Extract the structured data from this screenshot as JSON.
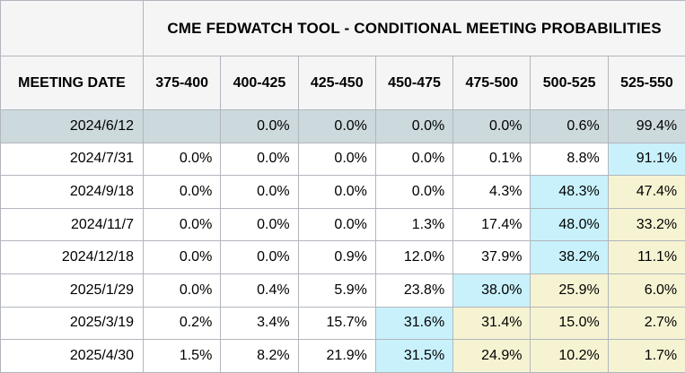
{
  "table": {
    "title": "CME FEDWATCH TOOL - CONDITIONAL MEETING PROBABILITIES",
    "date_header": "MEETING DATE",
    "range_headers": [
      "375-400",
      "400-425",
      "425-450",
      "450-475",
      "475-500",
      "500-525",
      "525-550"
    ],
    "rows": [
      {
        "date": "2024/6/12",
        "selected": true,
        "values": [
          "",
          "0.0%",
          "0.0%",
          "0.0%",
          "0.0%",
          "0.6%",
          "99.4%"
        ],
        "highlights": [
          "",
          "",
          "",
          "",
          "",
          "",
          ""
        ]
      },
      {
        "date": "2024/7/31",
        "selected": false,
        "values": [
          "0.0%",
          "0.0%",
          "0.0%",
          "0.0%",
          "0.1%",
          "8.8%",
          "91.1%"
        ],
        "highlights": [
          "",
          "",
          "",
          "",
          "",
          "",
          "cyan"
        ]
      },
      {
        "date": "2024/9/18",
        "selected": false,
        "values": [
          "0.0%",
          "0.0%",
          "0.0%",
          "0.0%",
          "4.3%",
          "48.3%",
          "47.4%"
        ],
        "highlights": [
          "",
          "",
          "",
          "",
          "",
          "cyan",
          "yellow"
        ]
      },
      {
        "date": "2024/11/7",
        "selected": false,
        "values": [
          "0.0%",
          "0.0%",
          "0.0%",
          "1.3%",
          "17.4%",
          "48.0%",
          "33.2%"
        ],
        "highlights": [
          "",
          "",
          "",
          "",
          "",
          "cyan",
          "yellow"
        ]
      },
      {
        "date": "2024/12/18",
        "selected": false,
        "values": [
          "0.0%",
          "0.0%",
          "0.9%",
          "12.0%",
          "37.9%",
          "38.2%",
          "11.1%"
        ],
        "highlights": [
          "",
          "",
          "",
          "",
          "",
          "cyan",
          "yellow"
        ]
      },
      {
        "date": "2025/1/29",
        "selected": false,
        "values": [
          "0.0%",
          "0.4%",
          "5.9%",
          "23.8%",
          "38.0%",
          "25.9%",
          "6.0%"
        ],
        "highlights": [
          "",
          "",
          "",
          "",
          "cyan",
          "yellow",
          "yellow"
        ]
      },
      {
        "date": "2025/3/19",
        "selected": false,
        "values": [
          "0.2%",
          "3.4%",
          "15.7%",
          "31.6%",
          "31.4%",
          "15.0%",
          "2.7%"
        ],
        "highlights": [
          "",
          "",
          "",
          "cyan",
          "yellow",
          "yellow",
          "yellow"
        ]
      },
      {
        "date": "2025/4/30",
        "selected": false,
        "values": [
          "1.5%",
          "8.2%",
          "21.9%",
          "31.5%",
          "24.9%",
          "10.2%",
          "1.7%"
        ],
        "highlights": [
          "",
          "",
          "",
          "cyan",
          "yellow",
          "yellow",
          "yellow"
        ]
      }
    ]
  },
  "colors": {
    "header_bg": "#f5f5f5",
    "border": "#b2b6bd",
    "selected_row_bg": "#ccd9dd",
    "cyan_cell_bg": "#c8f1fb",
    "yellow_cell_bg": "#f6f3d2"
  },
  "chart_data": {
    "type": "table",
    "title": "CME FEDWATCH TOOL - CONDITIONAL MEETING PROBABILITIES",
    "columns": [
      "MEETING DATE",
      "375-400",
      "400-425",
      "425-450",
      "450-475",
      "475-500",
      "500-525",
      "525-550"
    ],
    "rows": [
      [
        "2024/6/12",
        null,
        0.0,
        0.0,
        0.0,
        0.0,
        0.6,
        99.4
      ],
      [
        "2024/7/31",
        0.0,
        0.0,
        0.0,
        0.0,
        0.1,
        8.8,
        91.1
      ],
      [
        "2024/9/18",
        0.0,
        0.0,
        0.0,
        0.0,
        4.3,
        48.3,
        47.4
      ],
      [
        "2024/11/7",
        0.0,
        0.0,
        0.0,
        1.3,
        17.4,
        48.0,
        33.2
      ],
      [
        "2024/12/18",
        0.0,
        0.0,
        0.9,
        12.0,
        37.9,
        38.2,
        11.1
      ],
      [
        "2025/1/29",
        0.0,
        0.4,
        5.9,
        23.8,
        38.0,
        25.9,
        6.0
      ],
      [
        "2025/3/19",
        0.2,
        3.4,
        15.7,
        31.6,
        31.4,
        15.0,
        2.7
      ],
      [
        "2025/4/30",
        1.5,
        8.2,
        21.9,
        31.5,
        24.9,
        10.2,
        1.7
      ]
    ],
    "units": "percent"
  }
}
